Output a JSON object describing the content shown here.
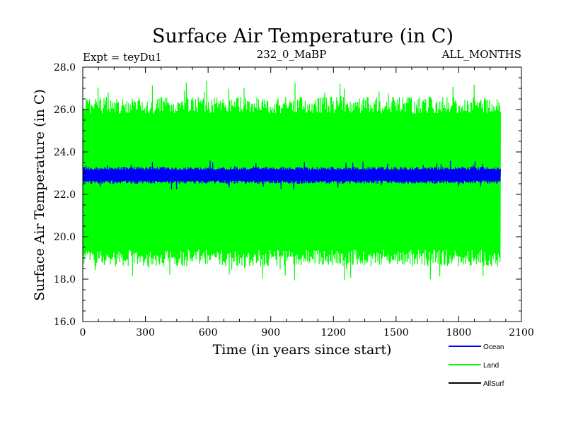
{
  "chart_data": {
    "type": "line",
    "title": "Surface Air Temperature (in C)",
    "subtitle_left": "Expt = teyDu1",
    "subtitle_center": "232_0_MaBP",
    "subtitle_right": "ALL_MONTHS",
    "xlabel": "Time (in years since start)",
    "ylabel": "Surface Air Temperature (in C)",
    "xlim": [
      0,
      2100
    ],
    "ylim": [
      16.0,
      28.0
    ],
    "x_ticks": [
      "0",
      "300",
      "600",
      "900",
      "1200",
      "1500",
      "1800",
      "2100"
    ],
    "y_ticks": [
      "16.0",
      "18.0",
      "20.0",
      "22.0",
      "24.0",
      "26.0",
      "28.0"
    ],
    "series": [
      {
        "name": "Land",
        "color": "#00ff00",
        "x_range": [
          0,
          2000
        ],
        "mean": 22.7,
        "typical_min": 18.6,
        "typical_max": 26.6,
        "extreme_min": 17.9,
        "extreme_max": 27.4
      },
      {
        "name": "Ocean",
        "color": "#0000ff",
        "x_range": [
          0,
          2000
        ],
        "mean": 22.9,
        "typical_min": 22.5,
        "typical_max": 23.3,
        "extreme_min": 22.2,
        "extreme_max": 23.6
      },
      {
        "name": "AllSurf",
        "color": "#000000",
        "x_range": [
          0,
          2000
        ],
        "mean": 22.85
      }
    ],
    "legend": {
      "placement": "bottom-right",
      "entries": [
        {
          "label": "Ocean",
          "color": "#0000ff"
        },
        {
          "label": "Land",
          "color": "#00ff00"
        },
        {
          "label": "AllSurf",
          "color": "#000000"
        }
      ]
    }
  }
}
